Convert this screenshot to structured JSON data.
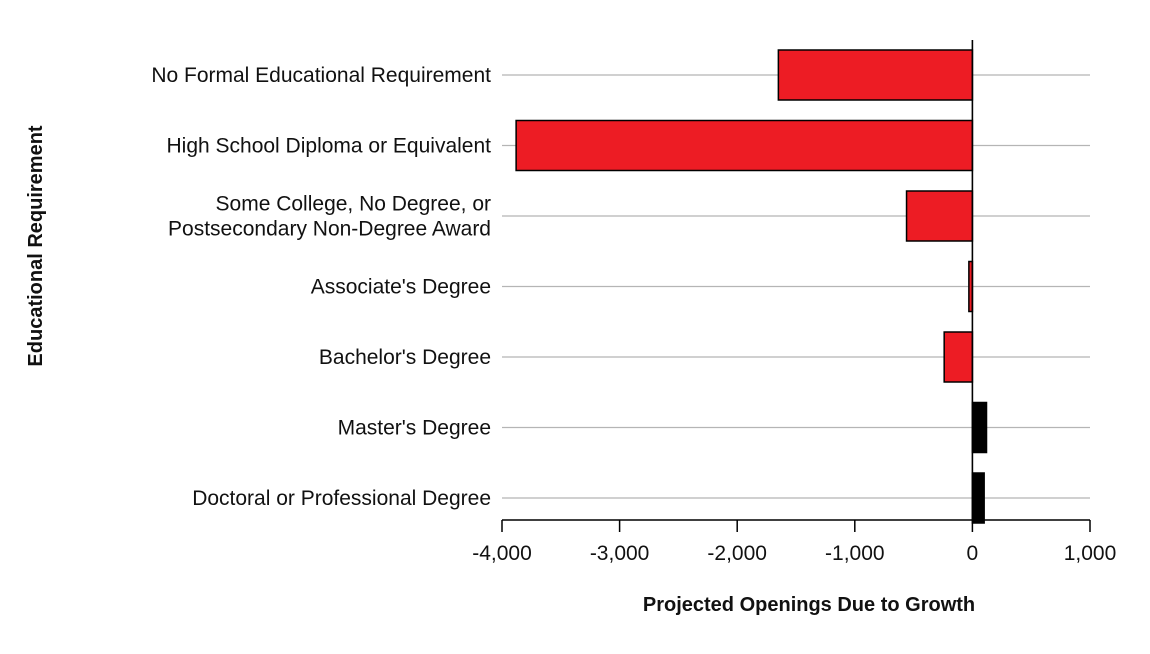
{
  "chart_data": {
    "type": "bar",
    "orientation": "horizontal",
    "title": "",
    "xlabel": "Projected Openings Due to Growth",
    "ylabel": "Educational Requirement",
    "categories": [
      [
        "No Formal Educational Requirement"
      ],
      [
        "High School Diploma or Equivalent"
      ],
      [
        "Some College, No Degree, or",
        "Postsecondary Non-Degree Award"
      ],
      [
        "Associate's Degree"
      ],
      [
        "Bachelor's Degree"
      ],
      [
        "Master's Degree"
      ],
      [
        "Doctoral or Professional Degree"
      ]
    ],
    "values": [
      -1650,
      -3880,
      -560,
      -30,
      -240,
      120,
      100
    ],
    "xlim": [
      -4000,
      1000
    ],
    "xticks": [
      -4000,
      -3000,
      -2000,
      -1000,
      0,
      1000
    ],
    "xtick_labels": [
      "-4,000",
      "-3,000",
      "-2,000",
      "-1,000",
      "0",
      "1,000"
    ],
    "negative_color": "#ed1c24",
    "positive_color": "#000000",
    "gridlines": "horizontal",
    "legend": "none"
  }
}
